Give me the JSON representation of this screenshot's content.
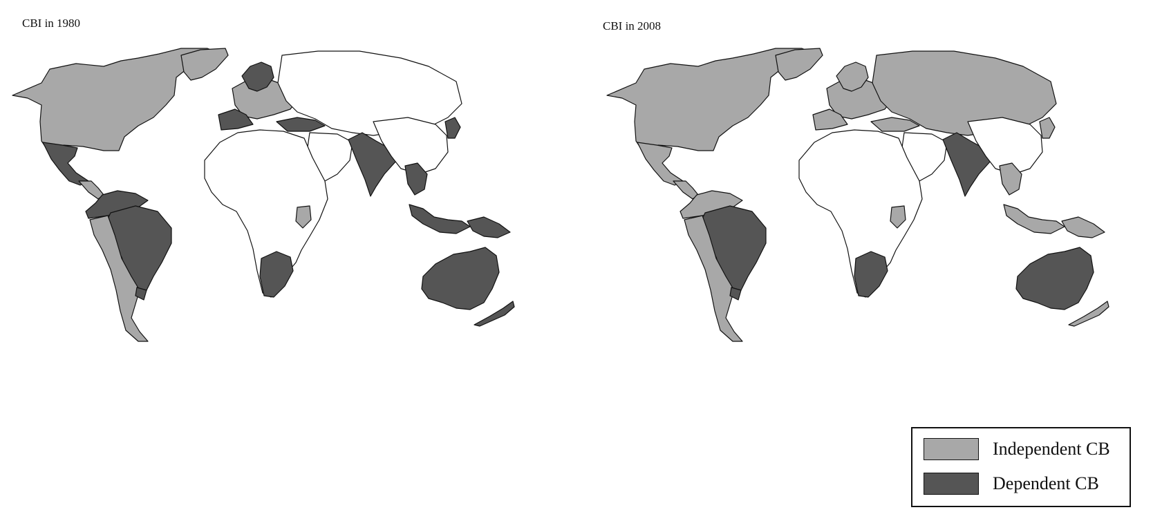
{
  "maps": [
    {
      "title": "CBI in 1980",
      "regions": {
        "north_america": "independent",
        "greenland": "independent",
        "mexico": "dependent",
        "central_america": "independent",
        "south_america_north": "dependent",
        "brazil": "dependent",
        "south_america_south": "independent",
        "uruguay": "dependent",
        "europe_west": "independent",
        "europe_southwest": "dependent",
        "scandinavia": "dependent",
        "turkey": "dependent",
        "russia_central_asia": "none",
        "middle_east": "none",
        "africa": "none",
        "kenya": "independent",
        "southern_africa": "dependent",
        "india": "dependent",
        "china_east_asia": "none",
        "japan": "dependent",
        "southeast_asia": "dependent",
        "indonesia": "dependent",
        "papua": "dependent",
        "australia": "dependent",
        "new_zealand": "dependent"
      }
    },
    {
      "title": "CBI in 2008",
      "regions": {
        "north_america": "independent",
        "greenland": "independent",
        "mexico": "independent",
        "central_america": "independent",
        "south_america_north": "independent",
        "brazil": "dependent",
        "south_america_south": "independent",
        "uruguay": "dependent",
        "europe_west": "independent",
        "europe_southwest": "independent",
        "scandinavia": "independent",
        "turkey": "independent",
        "russia_central_asia": "independent",
        "middle_east": "none",
        "africa": "none",
        "kenya": "independent",
        "southern_africa": "dependent",
        "india": "dependent",
        "china_east_asia": "none",
        "japan": "independent",
        "southeast_asia": "independent",
        "indonesia": "independent",
        "papua": "independent",
        "australia": "dependent",
        "new_zealand": "independent"
      }
    }
  ],
  "legend": {
    "items": [
      {
        "key": "independent",
        "label": "Independent CB",
        "color": "#a8a8a8"
      },
      {
        "key": "dependent",
        "label": "Dependent CB",
        "color": "#555555"
      }
    ]
  },
  "colors": {
    "independent": "#a8a8a8",
    "dependent": "#555555",
    "none": "#ffffff",
    "border": "#111111"
  }
}
